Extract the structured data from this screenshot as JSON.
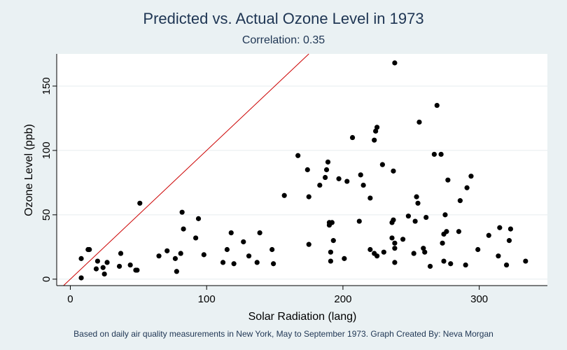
{
  "chart_data": {
    "type": "scatter",
    "title": "Predicted vs. Actual Ozone Level in 1973",
    "subtitle": "Correlation: 0.35",
    "xlabel": "Solar Radiation (lang)",
    "ylabel": "Ozone Level (ppb)",
    "note": "Based on daily air quality measurements in New York, May to September 1973. Graph Created By: Neva Morgan",
    "xlim": [
      -10,
      350
    ],
    "ylim": [
      -5,
      175
    ],
    "xticks": [
      "0",
      "100",
      "200",
      "300"
    ],
    "xtick_values": [
      0,
      100,
      200,
      300
    ],
    "yticks": [
      "0",
      "50",
      "100",
      "150"
    ],
    "ytick_values": [
      0,
      50,
      100,
      150
    ],
    "grid": true,
    "reference_line": {
      "intercept": 0,
      "slope": 1,
      "color": "#cc0000"
    },
    "point_color": "#000000",
    "points": [
      [
        8,
        16
      ],
      [
        8,
        1
      ],
      [
        13,
        23
      ],
      [
        14,
        23
      ],
      [
        19,
        8
      ],
      [
        20,
        14
      ],
      [
        24,
        9
      ],
      [
        25,
        4
      ],
      [
        27,
        13
      ],
      [
        36,
        10
      ],
      [
        37,
        20
      ],
      [
        44,
        11
      ],
      [
        48,
        7
      ],
      [
        49,
        7
      ],
      [
        51,
        59
      ],
      [
        65,
        18
      ],
      [
        71,
        22
      ],
      [
        77,
        16
      ],
      [
        78,
        6
      ],
      [
        81,
        20
      ],
      [
        82,
        52
      ],
      [
        83,
        39
      ],
      [
        92,
        32
      ],
      [
        94,
        47
      ],
      [
        98,
        19
      ],
      [
        112,
        13
      ],
      [
        115,
        23
      ],
      [
        118,
        36
      ],
      [
        120,
        12
      ],
      [
        127,
        29
      ],
      [
        131,
        18
      ],
      [
        137,
        13
      ],
      [
        139,
        36
      ],
      [
        148,
        23
      ],
      [
        149,
        12
      ],
      [
        157,
        65
      ],
      [
        167,
        96
      ],
      [
        174,
        85
      ],
      [
        175,
        64
      ],
      [
        175,
        27
      ],
      [
        183,
        73
      ],
      [
        187,
        79
      ],
      [
        188,
        85
      ],
      [
        189,
        91
      ],
      [
        190,
        42
      ],
      [
        190,
        44
      ],
      [
        191,
        14
      ],
      [
        191,
        21
      ],
      [
        192,
        44
      ],
      [
        193,
        30
      ],
      [
        197,
        78
      ],
      [
        201,
        16
      ],
      [
        203,
        76
      ],
      [
        207,
        110
      ],
      [
        212,
        45
      ],
      [
        213,
        81
      ],
      [
        215,
        73
      ],
      [
        220,
        63
      ],
      [
        220,
        23
      ],
      [
        223,
        20
      ],
      [
        223,
        108
      ],
      [
        224,
        115
      ],
      [
        225,
        18
      ],
      [
        225,
        118
      ],
      [
        229,
        89
      ],
      [
        230,
        21
      ],
      [
        236,
        32
      ],
      [
        236,
        44
      ],
      [
        237,
        46
      ],
      [
        237,
        84
      ],
      [
        238,
        28
      ],
      [
        238,
        24
      ],
      [
        238,
        13
      ],
      [
        238,
        168
      ],
      [
        244,
        31
      ],
      [
        248,
        49
      ],
      [
        252,
        20
      ],
      [
        253,
        45
      ],
      [
        254,
        64
      ],
      [
        255,
        59
      ],
      [
        256,
        122
      ],
      [
        259,
        24
      ],
      [
        260,
        21
      ],
      [
        261,
        48
      ],
      [
        264,
        10
      ],
      [
        267,
        97
      ],
      [
        269,
        135
      ],
      [
        272,
        97
      ],
      [
        273,
        28
      ],
      [
        274,
        35
      ],
      [
        274,
        14
      ],
      [
        275,
        50
      ],
      [
        276,
        37
      ],
      [
        277,
        77
      ],
      [
        279,
        12
      ],
      [
        285,
        37
      ],
      [
        286,
        61
      ],
      [
        290,
        11
      ],
      [
        291,
        71
      ],
      [
        294,
        80
      ],
      [
        299,
        23
      ],
      [
        307,
        34
      ],
      [
        314,
        18
      ],
      [
        315,
        40
      ],
      [
        320,
        11
      ],
      [
        322,
        30
      ],
      [
        323,
        39
      ],
      [
        334,
        14
      ]
    ]
  }
}
